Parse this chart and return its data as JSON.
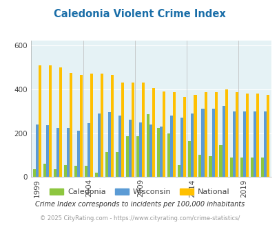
{
  "title": "Caledonia Violent Crime Index",
  "title_color": "#1a6ea8",
  "years": [
    1999,
    2000,
    2001,
    2002,
    2003,
    2004,
    2005,
    2006,
    2007,
    2008,
    2009,
    2010,
    2011,
    2012,
    2013,
    2014,
    2015,
    2016,
    2017,
    2018,
    2019,
    2020,
    2021
  ],
  "caledonia": [
    35,
    60,
    35,
    55,
    50,
    50,
    20,
    115,
    115,
    185,
    185,
    285,
    225,
    200,
    55,
    165,
    100,
    95,
    145,
    90,
    90,
    90,
    90
  ],
  "wisconsin": [
    240,
    235,
    225,
    225,
    210,
    245,
    290,
    295,
    280,
    260,
    250,
    240,
    230,
    280,
    270,
    290,
    310,
    310,
    325,
    300,
    300,
    300,
    300
  ],
  "national": [
    510,
    510,
    500,
    475,
    465,
    470,
    470,
    465,
    430,
    430,
    430,
    405,
    390,
    385,
    365,
    375,
    385,
    385,
    400,
    385,
    380,
    380,
    375
  ],
  "caledonia_color": "#8dc63f",
  "wisconsin_color": "#5b9bd5",
  "national_color": "#ffc000",
  "bg_color": "#e5f2f5",
  "ylim": [
    0,
    620
  ],
  "yticks": [
    0,
    200,
    400,
    600
  ],
  "xlabel_ticks": [
    1999,
    2004,
    2009,
    2014,
    2019
  ],
  "footnote1": "Crime Index corresponds to incidents per 100,000 inhabitants",
  "footnote2": "© 2025 CityRating.com - https://www.cityrating.com/crime-statistics/",
  "footnote1_color": "#333333",
  "footnote2_color": "#999999",
  "legend_labels": [
    "Caledonia",
    "Wisconsin",
    "National"
  ]
}
